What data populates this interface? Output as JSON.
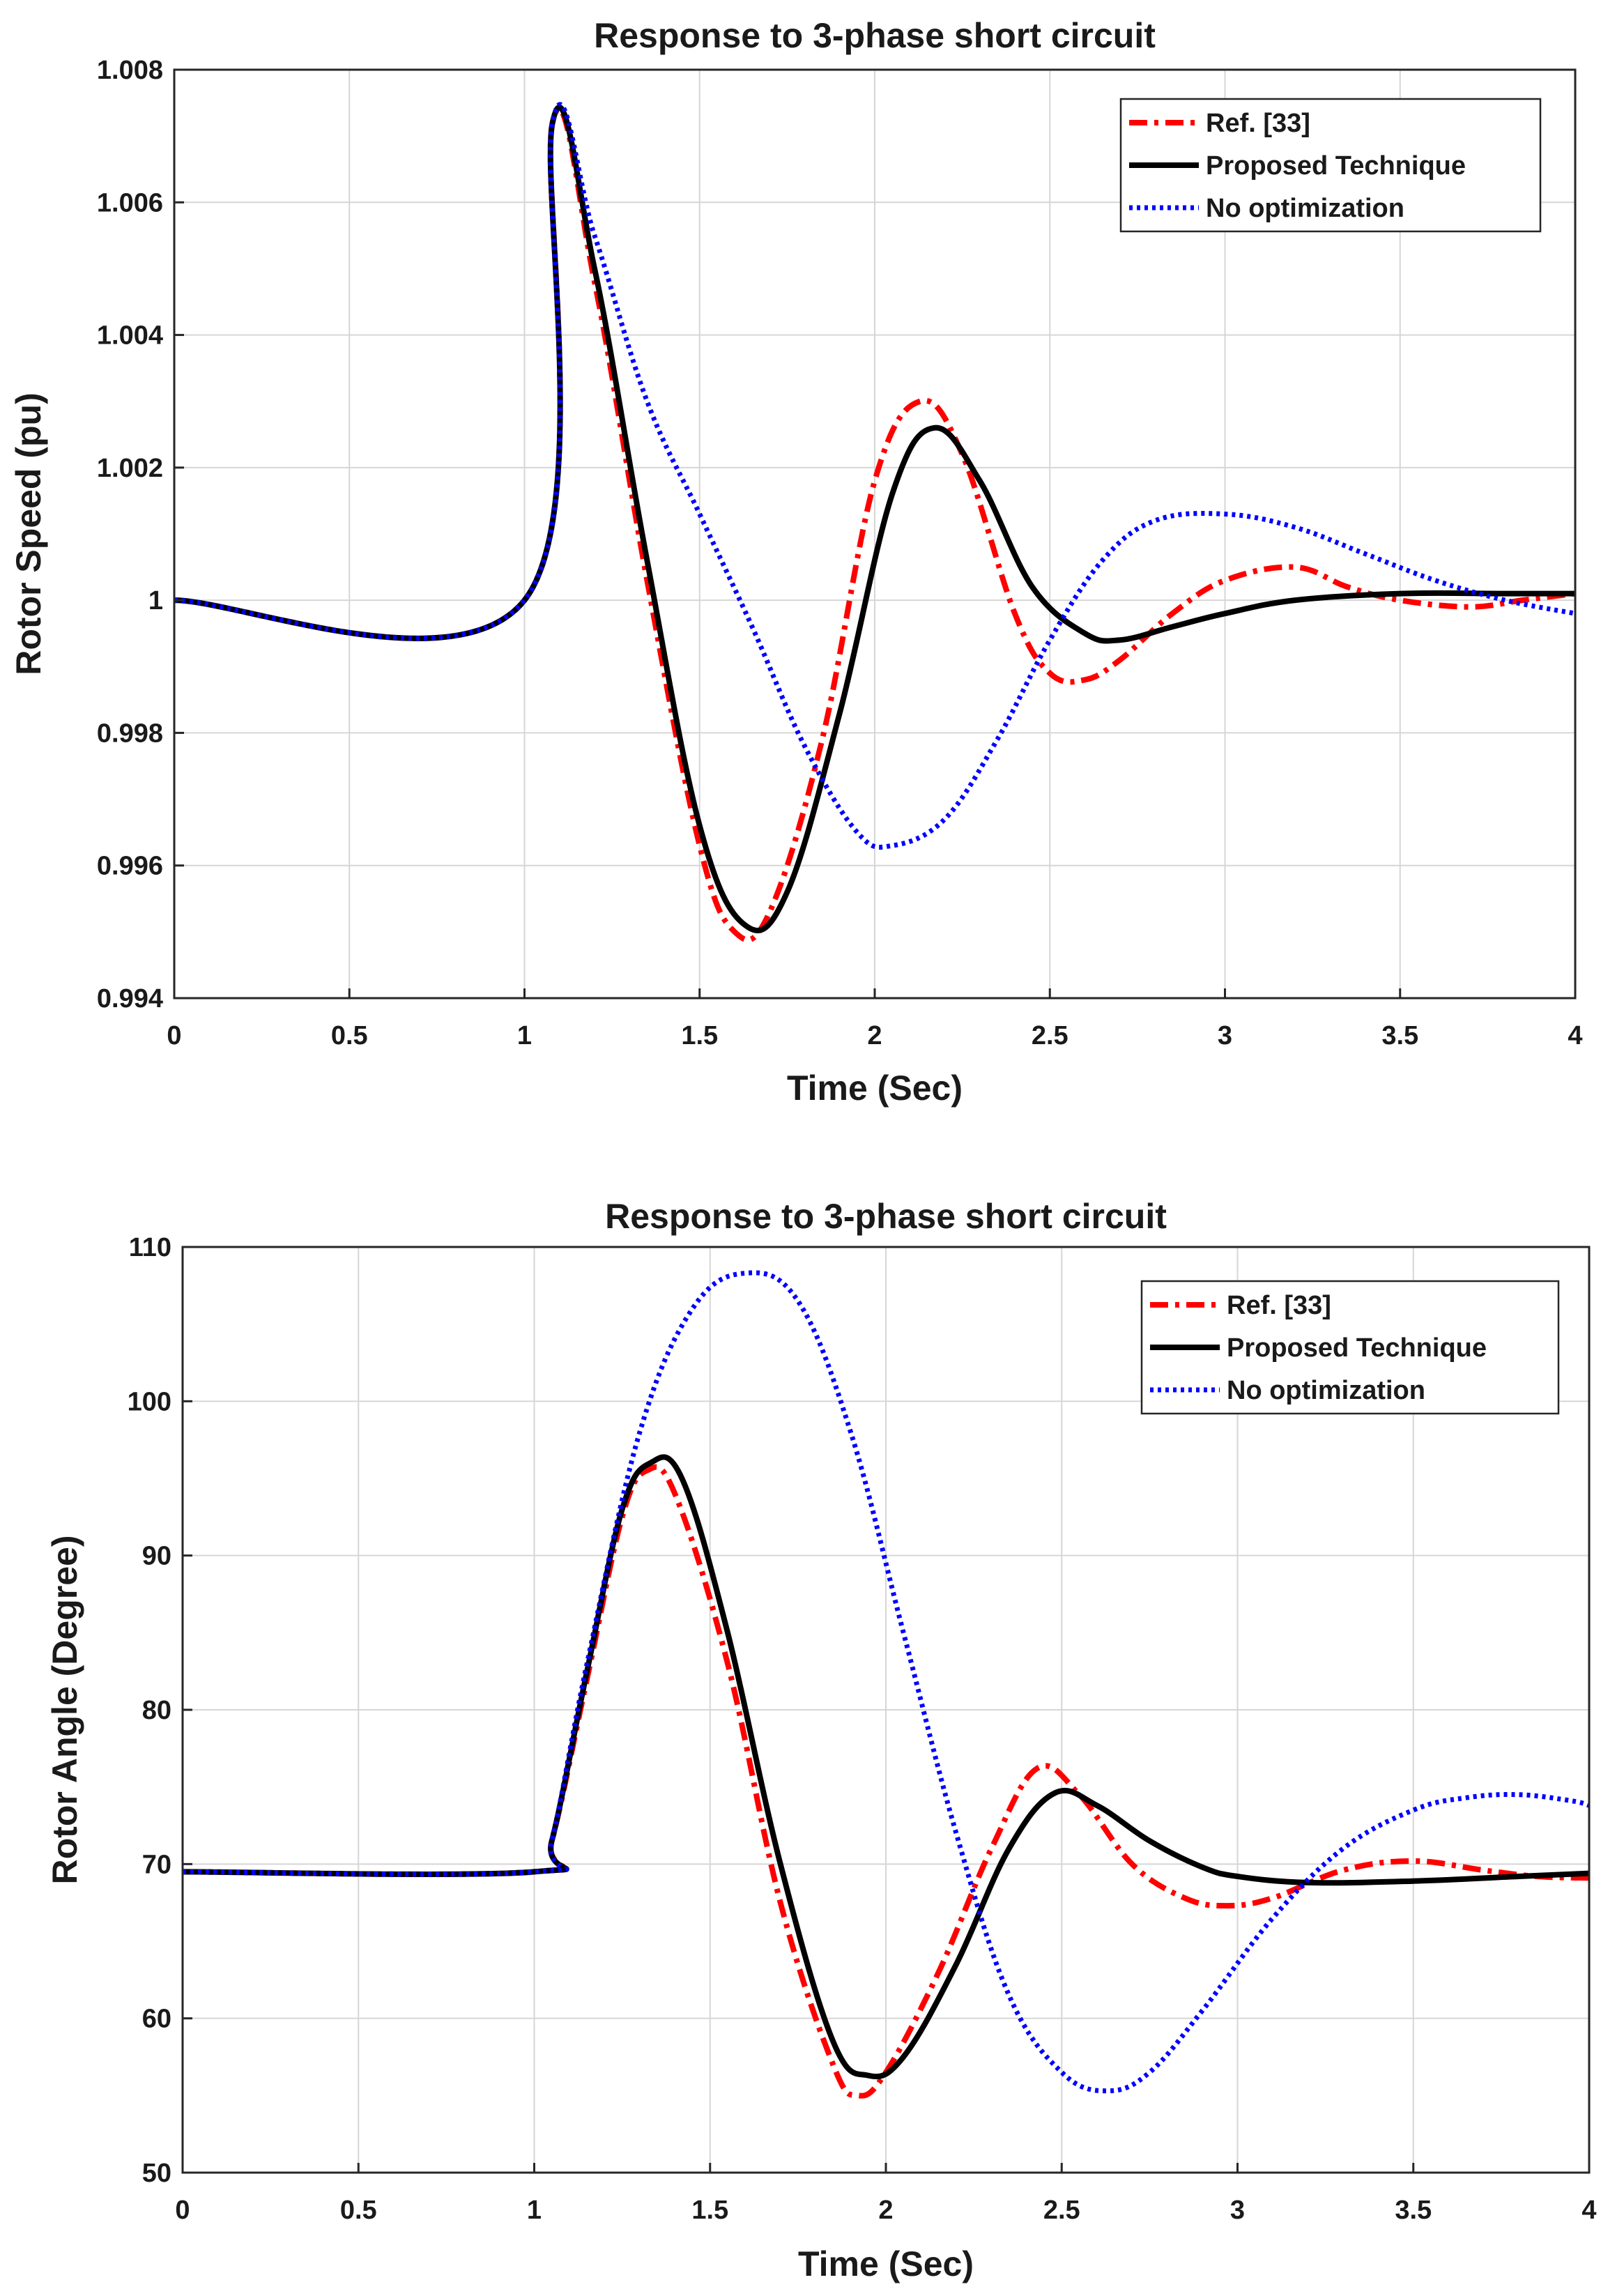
{
  "chart_data": [
    {
      "type": "line",
      "title": "Response to 3-phase short circuit",
      "xlabel": "Time (Sec)",
      "ylabel": "Rotor Speed (pu)",
      "xlim": [
        0,
        4
      ],
      "ylim": [
        0.994,
        1.008
      ],
      "xticks": [
        0,
        0.5,
        1,
        1.5,
        2,
        2.5,
        3,
        3.5,
        4
      ],
      "xtick_labels": [
        "0",
        "0.5",
        "1",
        "1.5",
        "2",
        "2.5",
        "3",
        "3.5",
        "4"
      ],
      "yticks": [
        0.994,
        0.996,
        0.998,
        1,
        1.002,
        1.004,
        1.006,
        1.008
      ],
      "ytick_labels": [
        "0.994",
        "0.996",
        "0.998",
        "1",
        "1.002",
        "1.004",
        "1.006",
        "1.008"
      ],
      "grid": true,
      "legend_position": "top-right",
      "series": [
        {
          "name": "Ref. [33]",
          "color": "#ff0000",
          "style": "dashdot",
          "x": [
            0,
            1.0,
            1.08,
            1.2,
            1.35,
            1.5,
            1.6,
            1.7,
            1.85,
            2.0,
            2.13,
            2.25,
            2.4,
            2.5,
            2.6,
            2.7,
            2.85,
            3.0,
            3.2,
            3.35,
            3.5,
            3.7,
            3.85,
            4.0
          ],
          "y": [
            1.0,
            1.0,
            1.0072,
            1.0048,
            1.0003,
            0.9963,
            0.995,
            0.9953,
            0.9979,
            1.0018,
            1.003,
            1.0022,
            0.9998,
            0.9989,
            0.9988,
            0.9991,
            0.9998,
            1.0003,
            1.0005,
            1.0002,
            1.0,
            0.9999,
            1.0,
            1.0001
          ]
        },
        {
          "name": "Proposed Technique",
          "color": "#000000",
          "style": "solid",
          "x": [
            0,
            1.0,
            1.08,
            1.2,
            1.35,
            1.5,
            1.63,
            1.75,
            1.9,
            2.05,
            2.17,
            2.3,
            2.45,
            2.6,
            2.7,
            2.85,
            3.0,
            3.2,
            3.5,
            3.8,
            4.0
          ],
          "y": [
            1.0,
            1.0,
            1.0072,
            1.005,
            1.0006,
            0.9966,
            0.9951,
            0.9956,
            0.9983,
            1.0016,
            1.0026,
            1.0018,
            1.0002,
            0.9995,
            0.9994,
            0.9996,
            0.9998,
            1.0,
            1.0001,
            1.0001,
            1.0001
          ]
        },
        {
          "name": "No optimization",
          "color": "#0000ff",
          "style": "dotted",
          "x": [
            0,
            1.0,
            1.08,
            1.2,
            1.35,
            1.5,
            1.65,
            1.8,
            1.95,
            2.05,
            2.2,
            2.35,
            2.5,
            2.65,
            2.8,
            3.0,
            3.2,
            3.4,
            3.6,
            3.8,
            4.0
          ],
          "y": [
            1.0,
            1.0,
            1.0072,
            1.0055,
            1.003,
            1.0013,
            0.9996,
            0.9978,
            0.9965,
            0.9963,
            0.9967,
            0.9979,
            0.9994,
            1.0006,
            1.0012,
            1.0013,
            1.0011,
            1.0007,
            1.0003,
            1.0,
            0.9998
          ]
        }
      ]
    },
    {
      "type": "line",
      "title": "Response to 3-phase short circuit",
      "xlabel": "Time (Sec)",
      "ylabel": "Rotor Angle (Degree)",
      "xlim": [
        0,
        4
      ],
      "ylim": [
        50,
        110
      ],
      "xticks": [
        0,
        0.5,
        1,
        1.5,
        2,
        2.5,
        3,
        3.5,
        4
      ],
      "xtick_labels": [
        "0",
        "0.5",
        "1",
        "1.5",
        "2",
        "2.5",
        "3",
        "3.5",
        "4"
      ],
      "yticks": [
        50,
        60,
        70,
        80,
        90,
        100,
        110
      ],
      "ytick_labels": [
        "50",
        "60",
        "70",
        "80",
        "90",
        "100",
        "110"
      ],
      "grid": true,
      "legend_position": "top-right",
      "series": [
        {
          "name": "Ref. [33]",
          "color": "#ff0000",
          "style": "dashdot",
          "x": [
            0,
            1.0,
            1.05,
            1.15,
            1.25,
            1.32,
            1.4,
            1.55,
            1.7,
            1.85,
            1.92,
            2.0,
            2.15,
            2.3,
            2.43,
            2.55,
            2.7,
            2.85,
            2.97,
            3.1,
            3.3,
            3.5,
            3.7,
            3.85,
            4.0
          ],
          "y": [
            69.5,
            69.5,
            71.5,
            82.0,
            92.5,
            95.5,
            94.0,
            83.0,
            67.5,
            57.0,
            55.0,
            56.5,
            63.0,
            71.0,
            76.2,
            74.5,
            70.0,
            67.8,
            67.3,
            67.8,
            69.6,
            70.2,
            69.6,
            69.2,
            69.1
          ]
        },
        {
          "name": "Proposed Technique",
          "color": "#000000",
          "style": "solid",
          "x": [
            0,
            1.0,
            1.05,
            1.15,
            1.25,
            1.33,
            1.42,
            1.55,
            1.7,
            1.85,
            1.95,
            2.05,
            2.2,
            2.35,
            2.48,
            2.6,
            2.75,
            2.9,
            3.0,
            3.2,
            3.5,
            3.8,
            4.0
          ],
          "y": [
            69.5,
            69.5,
            71.5,
            82.5,
            93.0,
            96.0,
            95.0,
            85.0,
            70.0,
            58.5,
            56.3,
            57.5,
            63.5,
            71.0,
            74.6,
            73.8,
            71.5,
            69.8,
            69.2,
            68.8,
            68.9,
            69.2,
            69.4
          ]
        },
        {
          "name": "No optimization",
          "color": "#0000ff",
          "style": "dotted",
          "x": [
            0,
            1.0,
            1.05,
            1.15,
            1.3,
            1.45,
            1.6,
            1.75,
            1.9,
            2.05,
            2.2,
            2.35,
            2.5,
            2.63,
            2.75,
            2.9,
            3.1,
            3.3,
            3.5,
            3.65,
            3.8,
            3.95,
            4.0
          ],
          "y": [
            69.5,
            69.5,
            71.5,
            83.0,
            98.0,
            106.0,
            108.3,
            106.5,
            98.0,
            85.0,
            72.0,
            61.5,
            56.5,
            55.3,
            56.5,
            60.5,
            66.5,
            71.0,
            73.5,
            74.3,
            74.5,
            74.1,
            73.8
          ]
        }
      ]
    }
  ]
}
